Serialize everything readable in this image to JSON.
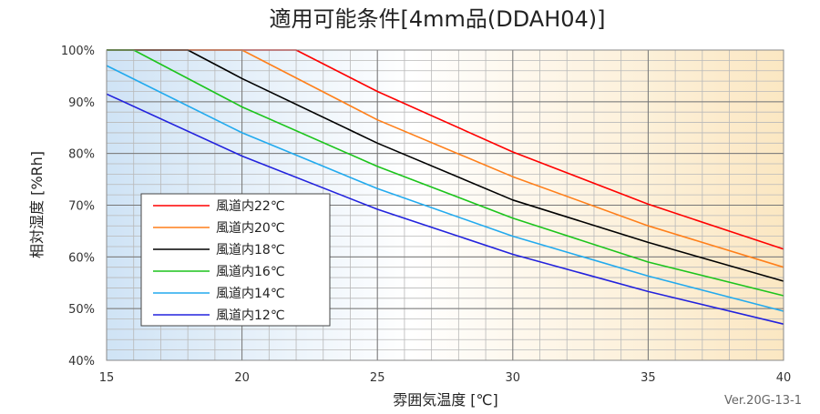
{
  "chart_data": {
    "type": "line",
    "title": "適用可能条件[4mm品(DDAH04)]",
    "xlabel": "雰囲気温度 [℃]",
    "ylabel": "相対湿度 [%Rh]",
    "xlim": [
      15,
      40
    ],
    "ylim": [
      40,
      100
    ],
    "x_ticks": [
      15,
      20,
      25,
      30,
      35,
      40
    ],
    "y_ticks": [
      40,
      50,
      60,
      70,
      80,
      90,
      100
    ],
    "y_tick_labels": [
      "40%",
      "50%",
      "60%",
      "70%",
      "80%",
      "90%",
      "100%"
    ],
    "grid": true,
    "legend_position": "lower-left",
    "version": "Ver.20G-13-1",
    "series": [
      {
        "name": "風道内22℃",
        "color": "#ff0000",
        "points": [
          [
            15,
            100
          ],
          [
            22,
            100
          ],
          [
            25,
            92.0
          ],
          [
            30,
            80.3
          ],
          [
            35,
            70.2
          ],
          [
            40,
            61.5
          ]
        ]
      },
      {
        "name": "風道内20℃",
        "color": "#ff7f1a",
        "points": [
          [
            15,
            100
          ],
          [
            20,
            100
          ],
          [
            25,
            86.5
          ],
          [
            30,
            75.5
          ],
          [
            35,
            66.0
          ],
          [
            40,
            58.0
          ]
        ]
      },
      {
        "name": "風道内18℃",
        "color": "#000000",
        "points": [
          [
            15,
            100
          ],
          [
            18,
            100
          ],
          [
            20,
            94.5
          ],
          [
            25,
            82.0
          ],
          [
            30,
            71.0
          ],
          [
            35,
            62.8
          ],
          [
            40,
            55.3
          ]
        ]
      },
      {
        "name": "風道内16℃",
        "color": "#1cc41c",
        "points": [
          [
            15,
            100
          ],
          [
            16,
            100
          ],
          [
            20,
            89.0
          ],
          [
            25,
            77.5
          ],
          [
            30,
            67.5
          ],
          [
            35,
            59.0
          ],
          [
            40,
            52.5
          ]
        ]
      },
      {
        "name": "風道内14℃",
        "color": "#22aaee",
        "points": [
          [
            15,
            97.0
          ],
          [
            20,
            84.0
          ],
          [
            25,
            73.2
          ],
          [
            30,
            64.0
          ],
          [
            35,
            56.3
          ],
          [
            40,
            49.5
          ]
        ]
      },
      {
        "name": "風道内12℃",
        "color": "#2222dd",
        "points": [
          [
            15,
            91.5
          ],
          [
            20,
            79.5
          ],
          [
            25,
            69.2
          ],
          [
            30,
            60.5
          ],
          [
            35,
            53.3
          ],
          [
            40,
            47.0
          ]
        ]
      }
    ]
  }
}
